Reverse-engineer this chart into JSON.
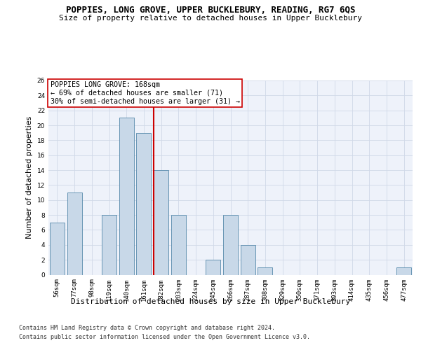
{
  "title": "POPPIES, LONG GROVE, UPPER BUCKLEBURY, READING, RG7 6QS",
  "subtitle": "Size of property relative to detached houses in Upper Bucklebury",
  "xlabel": "Distribution of detached houses by size in Upper Bucklebury",
  "ylabel": "Number of detached properties",
  "footer1": "Contains HM Land Registry data © Crown copyright and database right 2024.",
  "footer2": "Contains public sector information licensed under the Open Government Licence v3.0.",
  "categories": [
    "56sqm",
    "77sqm",
    "98sqm",
    "119sqm",
    "140sqm",
    "161sqm",
    "182sqm",
    "203sqm",
    "224sqm",
    "245sqm",
    "266sqm",
    "287sqm",
    "308sqm",
    "329sqm",
    "350sqm",
    "371sqm",
    "393sqm",
    "414sqm",
    "435sqm",
    "456sqm",
    "477sqm"
  ],
  "values": [
    7,
    11,
    0,
    8,
    21,
    19,
    14,
    8,
    0,
    2,
    8,
    4,
    1,
    0,
    0,
    0,
    0,
    0,
    0,
    0,
    1
  ],
  "bar_color": "#c8d8e8",
  "bar_edge_color": "#5588aa",
  "red_line_index": 6,
  "red_line_color": "#cc0000",
  "annotation_text": "POPPIES LONG GROVE: 168sqm\n← 69% of detached houses are smaller (71)\n30% of semi-detached houses are larger (31) →",
  "annotation_box_color": "#ffffff",
  "annotation_box_edge": "#cc0000",
  "ylim": [
    0,
    26
  ],
  "yticks": [
    0,
    2,
    4,
    6,
    8,
    10,
    12,
    14,
    16,
    18,
    20,
    22,
    24,
    26
  ],
  "grid_color": "#d0d8e8",
  "bg_color": "#eef2fa",
  "title_fontsize": 9.0,
  "subtitle_fontsize": 8.0,
  "xlabel_fontsize": 8.0,
  "ylabel_fontsize": 8.0,
  "tick_fontsize": 6.5,
  "annotation_fontsize": 7.2,
  "footer_fontsize": 6.0
}
